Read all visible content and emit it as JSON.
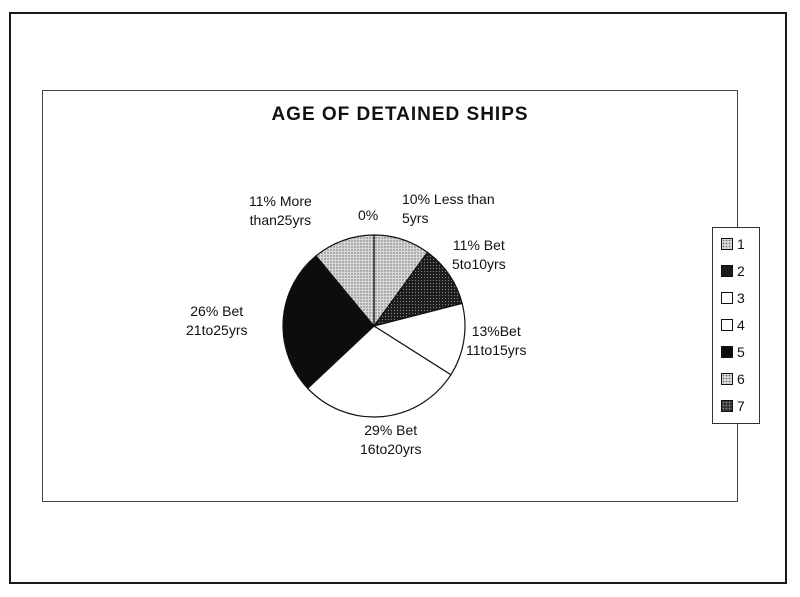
{
  "chart_data": {
    "type": "pie",
    "title": "AGE OF DETAINED SHIPS",
    "slices": [
      {
        "label": "10% Less than\n5yrs",
        "value": 10,
        "color": "#cfcfcf",
        "pattern": "dots"
      },
      {
        "label": "11% Bet\n5to10yrs",
        "value": 11,
        "color": "#1c1c1c",
        "pattern": "dots-dark"
      },
      {
        "label": "13%Bet\n11to15yrs",
        "value": 13,
        "color": "#ffffff",
        "pattern": "none"
      },
      {
        "label": "29% Bet\n16to20yrs",
        "value": 29,
        "color": "#ffffff",
        "pattern": "none"
      },
      {
        "label": "26% Bet\n21to25yrs",
        "value": 26,
        "color": "#0d0d0d",
        "pattern": "none"
      },
      {
        "label": "11% More\nthan25yrs",
        "value": 11,
        "color": "#cfcfcf",
        "pattern": "dots"
      },
      {
        "label": "0%",
        "value": 0,
        "color": "#555555",
        "pattern": "dots-dark"
      }
    ],
    "legend": {
      "placement": "right",
      "entries": [
        {
          "label": "1",
          "color": "#cfcfcf",
          "pattern": "dots"
        },
        {
          "label": "2",
          "color": "#1c1c1c",
          "pattern": "none"
        },
        {
          "label": "3",
          "color": "#ffffff",
          "pattern": "none"
        },
        {
          "label": "4",
          "color": "#ffffff",
          "pattern": "none"
        },
        {
          "label": "5",
          "color": "#0d0d0d",
          "pattern": "none"
        },
        {
          "label": "6",
          "color": "#cfcfcf",
          "pattern": "dots"
        },
        {
          "label": "7",
          "color": "#555555",
          "pattern": "dots-dark"
        }
      ]
    }
  }
}
